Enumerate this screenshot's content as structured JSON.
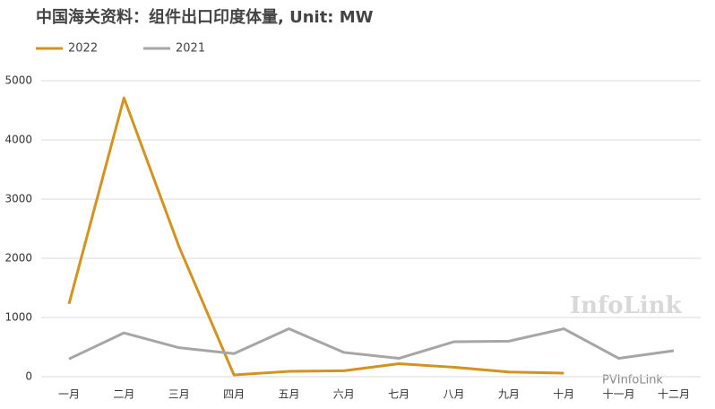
{
  "chart_data": {
    "type": "line",
    "title": "中国海关资料：组件出口印度体量, Unit: MW",
    "categories": [
      "一月",
      "二月",
      "三月",
      "四月",
      "五月",
      "六月",
      "七月",
      "八月",
      "九月",
      "十月",
      "十一月",
      "十二月"
    ],
    "series": [
      {
        "name": "2022",
        "color": "#d4921e",
        "values": [
          1230,
          4710,
          2200,
          30,
          90,
          100,
          220,
          160,
          80,
          60,
          null,
          null
        ]
      },
      {
        "name": "2021",
        "color": "#a6a6a6",
        "values": [
          300,
          740,
          490,
          390,
          810,
          410,
          310,
          590,
          600,
          810,
          310,
          440
        ]
      }
    ],
    "ylim": [
      0,
      5000
    ],
    "yticks": [
      0,
      1000,
      2000,
      3000,
      4000,
      5000
    ],
    "grid": true,
    "legend": "top-left",
    "annotations": [
      "InfoLink",
      "PVInfoLink"
    ]
  }
}
